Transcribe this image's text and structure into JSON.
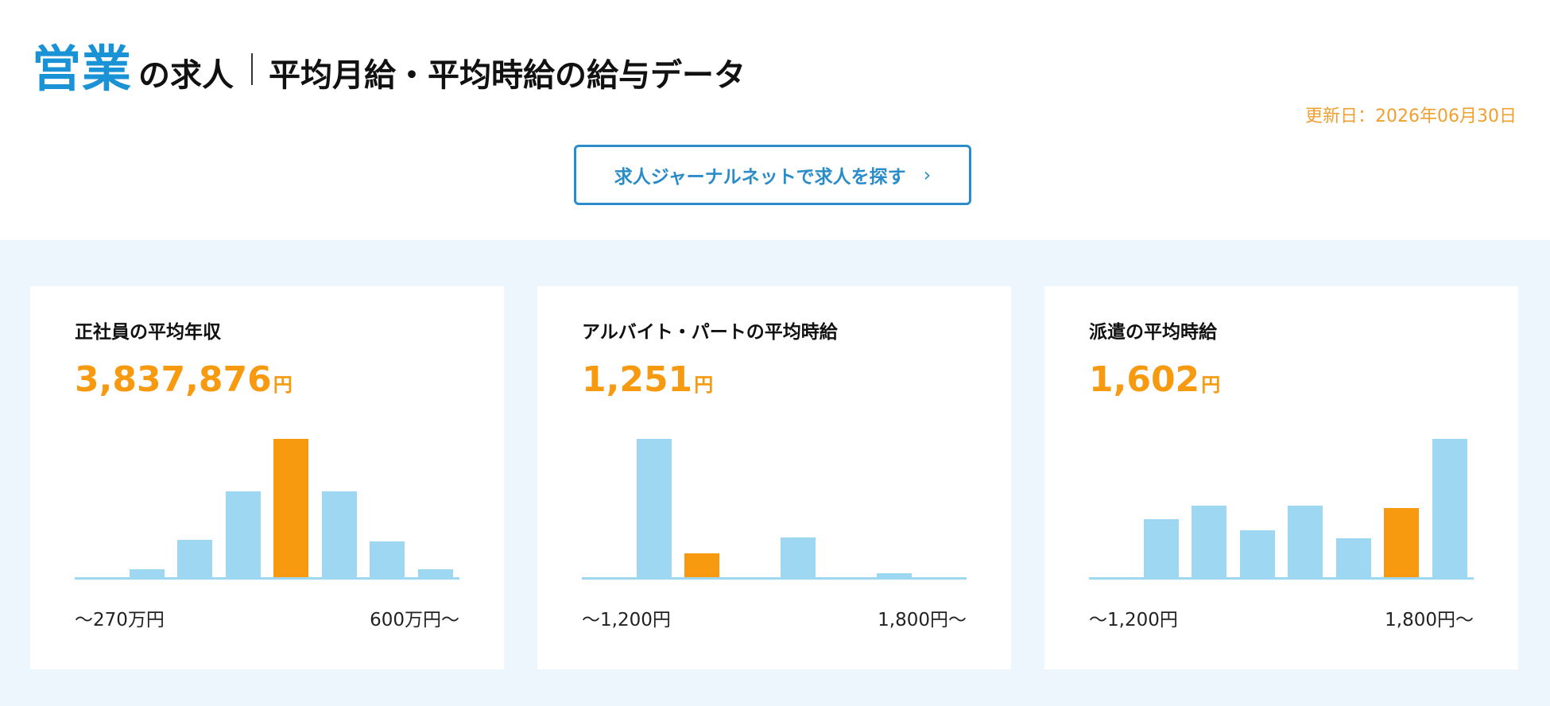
{
  "header": {
    "keyword": "営業",
    "title_suffix": "の求人",
    "title_main": "平均月給・平均時給の給与データ",
    "updated": "更新日：2026年06月30日",
    "search_button_label": "求人ジャーナルネットで求人を探す",
    "search_button_icon": "chevron-right-icon"
  },
  "colors": {
    "accent": "#1a93d6",
    "highlight": "#f79a10",
    "bar": "#9dd7f2",
    "baseline": "#9dd7f2",
    "panel_bg": "#eef6fd"
  },
  "cards": [
    {
      "title": "正社員の平均年収",
      "value": "3,837,876",
      "unit": "円",
      "min_label": "〜270万円",
      "max_label": "600万円〜"
    },
    {
      "title": "アルバイト・パートの平均時給",
      "value": "1,251",
      "unit": "円",
      "min_label": "〜1,200円",
      "max_label": "1,800円〜"
    },
    {
      "title": "派遣の平均時給",
      "value": "1,602",
      "unit": "円",
      "min_label": "〜1,200円",
      "max_label": "1,800円〜"
    }
  ],
  "chart_data": [
    {
      "type": "bar",
      "title": "",
      "xlabel": "",
      "ylabel": "",
      "bins": 8,
      "values": [
        0,
        6,
        27,
        62,
        100,
        62,
        26,
        6
      ],
      "highlight_index": 4,
      "x_start_label": "〜270万円",
      "x_end_label": "600万円〜"
    },
    {
      "type": "bar",
      "title": "",
      "xlabel": "",
      "ylabel": "",
      "bins": 8,
      "values": [
        0,
        100,
        17,
        0,
        29,
        0,
        3,
        0
      ],
      "highlight_index": 2,
      "x_start_label": "〜1,200円",
      "x_end_label": "1,800円〜"
    },
    {
      "type": "bar",
      "title": "",
      "xlabel": "",
      "ylabel": "",
      "bins": 8,
      "values": [
        0,
        42,
        52,
        34,
        52,
        28,
        50,
        100
      ],
      "highlight_index": 6,
      "x_start_label": "〜1,200円",
      "x_end_label": "1,800円〜"
    }
  ]
}
